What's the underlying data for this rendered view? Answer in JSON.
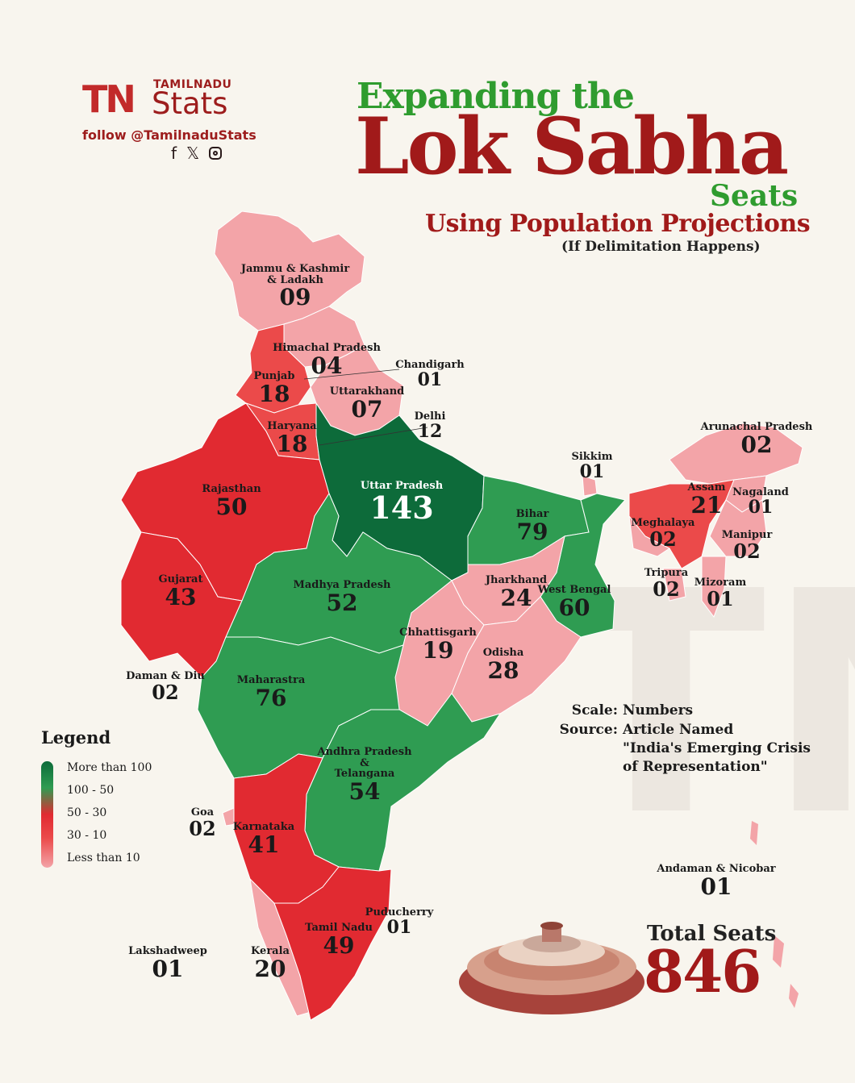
{
  "brand": {
    "logo": "TN",
    "top": "TAMILNADU",
    "name": "Stats",
    "follow": "follow @TamilnaduStats",
    "social_icons": [
      "facebook-icon",
      "x-icon",
      "instagram-icon"
    ]
  },
  "title": {
    "line1": "Expanding the",
    "line2": "Lok Sabha",
    "line3": "Seats",
    "line4": "Using Population Projections",
    "line5": "(If Delimitation Happens)"
  },
  "states": [
    {
      "name": "Jammu & Kashmir\n& Ladakh",
      "seats": "09"
    },
    {
      "name": "Himachal Pradesh",
      "seats": "04"
    },
    {
      "name": "Chandigarh",
      "seats": "01"
    },
    {
      "name": "Punjab",
      "seats": "18"
    },
    {
      "name": "Uttarakhand",
      "seats": "07"
    },
    {
      "name": "Delhi",
      "seats": "12"
    },
    {
      "name": "Haryana",
      "seats": "18"
    },
    {
      "name": "Rajasthan",
      "seats": "50"
    },
    {
      "name": "Uttar Pradesh",
      "seats": "143"
    },
    {
      "name": "Bihar",
      "seats": "79"
    },
    {
      "name": "Sikkim",
      "seats": "01"
    },
    {
      "name": "Arunachal Pradesh",
      "seats": "02"
    },
    {
      "name": "Assam",
      "seats": "21"
    },
    {
      "name": "Nagaland",
      "seats": "01"
    },
    {
      "name": "Meghalaya",
      "seats": "02"
    },
    {
      "name": "Manipur",
      "seats": "02"
    },
    {
      "name": "Tripura",
      "seats": "02"
    },
    {
      "name": "Mizoram",
      "seats": "01"
    },
    {
      "name": "Gujarat",
      "seats": "43"
    },
    {
      "name": "Madhya Pradesh",
      "seats": "52"
    },
    {
      "name": "Jharkhand",
      "seats": "24"
    },
    {
      "name": "West Bengal",
      "seats": "60"
    },
    {
      "name": "Chhattisgarh",
      "seats": "19"
    },
    {
      "name": "Odisha",
      "seats": "28"
    },
    {
      "name": "Daman & Diu",
      "seats": "02"
    },
    {
      "name": "Maharastra",
      "seats": "76"
    },
    {
      "name": "Andhra Pradesh\n&\nTelangana",
      "seats": "54"
    },
    {
      "name": "Goa",
      "seats": "02"
    },
    {
      "name": "Karnataka",
      "seats": "41"
    },
    {
      "name": "Andaman & Nicobar",
      "seats": "01"
    },
    {
      "name": "Puducherry",
      "seats": "01"
    },
    {
      "name": "Tamil Nadu",
      "seats": "49"
    },
    {
      "name": "Lakshadweep",
      "seats": "01"
    },
    {
      "name": "Kerala",
      "seats": "20"
    }
  ],
  "legend": {
    "title": "Legend",
    "items": [
      "More than 100",
      "100 - 50",
      "50 - 30",
      "30 - 10",
      "Less than 10"
    ],
    "colors": [
      "#0d6b3a",
      "#2f9c52",
      "#e12a31",
      "#eb4a4a",
      "#f3a4a8"
    ]
  },
  "source": {
    "scale_label": "Scale:",
    "scale_value": "Numbers",
    "source_label": "Source:",
    "source_value_1": "Article Named",
    "source_value_2": "\"India's Emerging Crisis",
    "source_value_3": "of Representation\""
  },
  "total": {
    "label": "Total Seats",
    "value": "846"
  }
}
